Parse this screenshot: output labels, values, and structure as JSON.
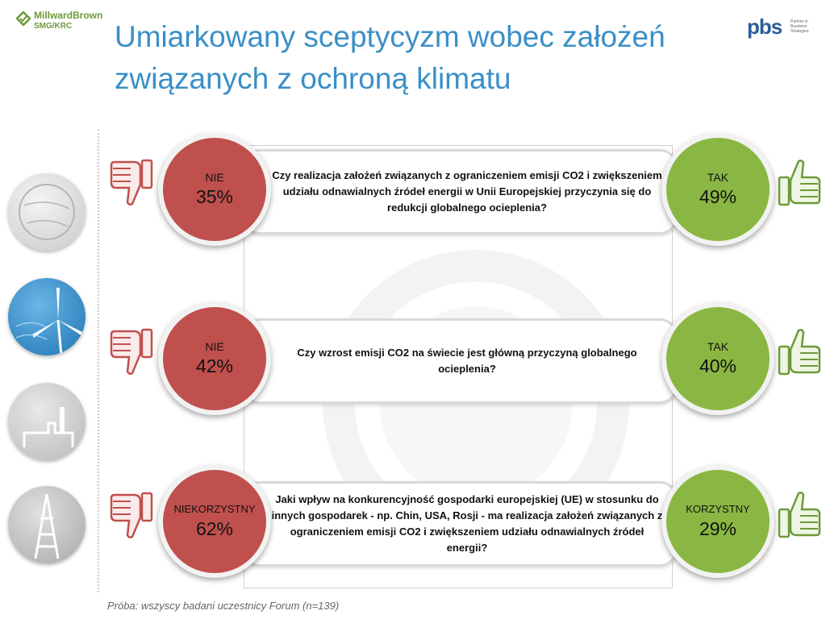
{
  "header": {
    "title": "Umiarkowany sceptycyzm wobec założeń związanych z ochroną klimatu",
    "logo_left_name": "MillwardBrown",
    "logo_left_sub": "SMG/KRC",
    "logo_right_name": "pbs",
    "logo_right_tagline": "Partner in Business Strategies"
  },
  "colors": {
    "title": "#3a8fc7",
    "no": "#c0504d",
    "yes": "#8ab743"
  },
  "chart_data": {
    "type": "table",
    "questions": [
      {
        "text": "Czy realizacja założeń związanych z ograniczeniem emisji CO2 i zwiększeniem udziału odnawialnych źródeł energii w Unii Europejskiej przyczynia się do redukcji globalnego ocieplenia?",
        "negative": {
          "label": "NIE",
          "value": "35%"
        },
        "positive": {
          "label": "TAK",
          "value": "49%"
        }
      },
      {
        "text": "Czy wzrost emisji CO2 na świecie jest główną przyczyną globalnego ocieplenia?",
        "negative": {
          "label": "NIE",
          "value": "42%"
        },
        "positive": {
          "label": "TAK",
          "value": "40%"
        }
      },
      {
        "text": "Jaki wpływ na konkurencyjność gospodarki europejskiej (UE) w stosunku do innych gospodarek - np. Chin, USA, Rosji - ma realizacja założeń związanych z ograniczeniem emisji CO2 i zwiększeniem udziału odnawialnych źródeł energii?",
        "negative": {
          "label": "NIEKORZYSTNY",
          "value": "62%"
        },
        "positive": {
          "label": "KORZYSTNY",
          "value": "29%"
        }
      }
    ]
  },
  "footnote": "Próba: wszyscy badani uczestnicy Forum (n=139)",
  "icons": [
    "thumbs-down-icon",
    "thumbs-up-icon"
  ]
}
